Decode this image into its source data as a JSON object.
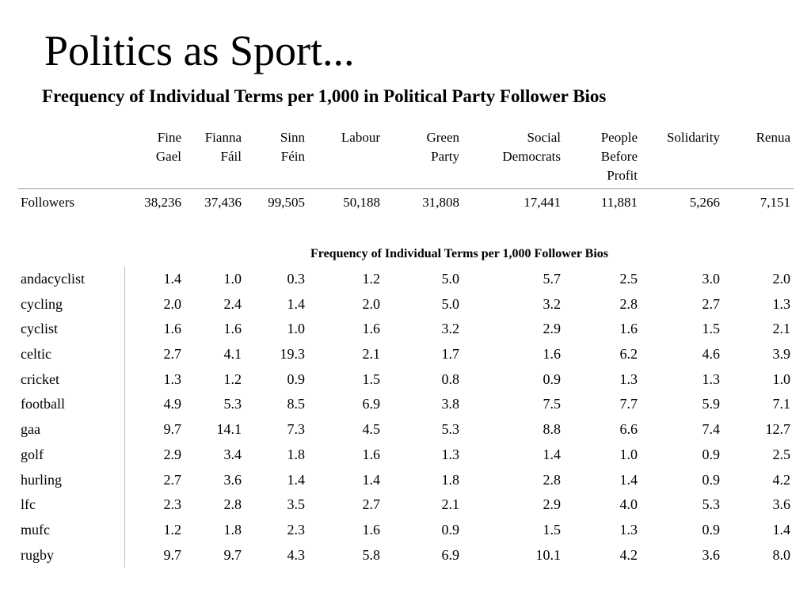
{
  "title": "Politics as Sport...",
  "subtitle": "Frequency of Individual Terms per 1,000 in Political Party Follower Bios",
  "columns": [
    {
      "line1": "Fine",
      "line2": "Gael",
      "line3": ""
    },
    {
      "line1": "Fianna",
      "line2": "Fáil",
      "line3": ""
    },
    {
      "line1": "Sinn",
      "line2": "Féin",
      "line3": ""
    },
    {
      "line1": "Labour",
      "line2": "",
      "line3": ""
    },
    {
      "line1": "Green",
      "line2": "Party",
      "line3": ""
    },
    {
      "line1": "Social",
      "line2": "Democrats",
      "line3": ""
    },
    {
      "line1": "People",
      "line2": "Before",
      "line3": "Profit"
    },
    {
      "line1": "Solidarity",
      "line2": "",
      "line3": ""
    },
    {
      "line1": "Renua",
      "line2": "",
      "line3": ""
    }
  ],
  "followers": {
    "label": "Followers",
    "values": [
      "38,236",
      "37,436",
      "99,505",
      "50,188",
      "31,808",
      "17,441",
      "11,881",
      "5,266",
      "7,151"
    ]
  },
  "section_title": "Frequency of Individual Terms per 1,000 Follower Bios",
  "rows": [
    {
      "term": "andacyclist",
      "values": [
        "1.4",
        "1.0",
        "0.3",
        "1.2",
        "5.0",
        "5.7",
        "2.5",
        "3.0",
        "2.0"
      ]
    },
    {
      "term": "cycling",
      "values": [
        "2.0",
        "2.4",
        "1.4",
        "2.0",
        "5.0",
        "3.2",
        "2.8",
        "2.7",
        "1.3"
      ]
    },
    {
      "term": "cyclist",
      "values": [
        "1.6",
        "1.6",
        "1.0",
        "1.6",
        "3.2",
        "2.9",
        "1.6",
        "1.5",
        "2.1"
      ]
    },
    {
      "term": "celtic",
      "values": [
        "2.7",
        "4.1",
        "19.3",
        "2.1",
        "1.7",
        "1.6",
        "6.2",
        "4.6",
        "3.9"
      ]
    },
    {
      "term": "cricket",
      "values": [
        "1.3",
        "1.2",
        "0.9",
        "1.5",
        "0.8",
        "0.9",
        "1.3",
        "1.3",
        "1.0"
      ]
    },
    {
      "term": "football",
      "values": [
        "4.9",
        "5.3",
        "8.5",
        "6.9",
        "3.8",
        "7.5",
        "7.7",
        "5.9",
        "7.1"
      ]
    },
    {
      "term": "gaa",
      "values": [
        "9.7",
        "14.1",
        "7.3",
        "4.5",
        "5.3",
        "8.8",
        "6.6",
        "7.4",
        "12.7"
      ]
    },
    {
      "term": "golf",
      "values": [
        "2.9",
        "3.4",
        "1.8",
        "1.6",
        "1.3",
        "1.4",
        "1.0",
        "0.9",
        "2.5"
      ]
    },
    {
      "term": "hurling",
      "values": [
        "2.7",
        "3.6",
        "1.4",
        "1.4",
        "1.8",
        "2.8",
        "1.4",
        "0.9",
        "4.2"
      ]
    },
    {
      "term": "lfc",
      "values": [
        "2.3",
        "2.8",
        "3.5",
        "2.7",
        "2.1",
        "2.9",
        "4.0",
        "5.3",
        "3.6"
      ]
    },
    {
      "term": "mufc",
      "values": [
        "1.2",
        "1.8",
        "2.3",
        "1.6",
        "0.9",
        "1.5",
        "1.3",
        "0.9",
        "1.4"
      ]
    },
    {
      "term": "rugby",
      "values": [
        "9.7",
        "9.7",
        "4.3",
        "5.8",
        "6.9",
        "10.1",
        "4.2",
        "3.6",
        "8.0"
      ]
    }
  ]
}
